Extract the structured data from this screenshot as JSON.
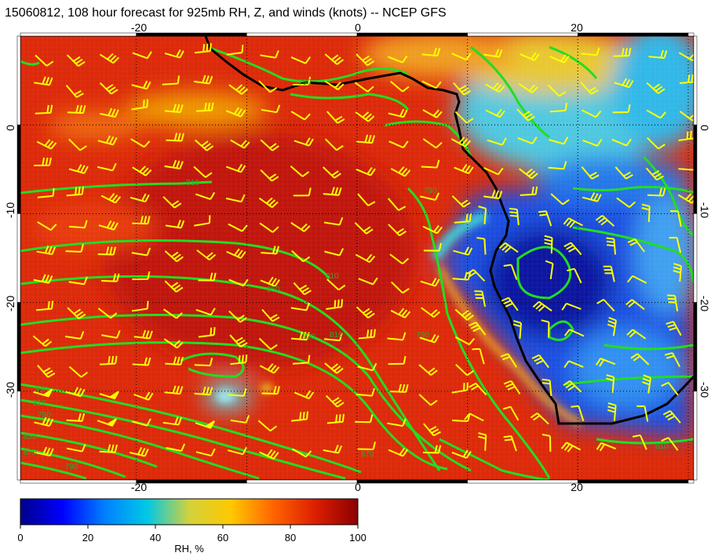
{
  "title": "15060812, 108 hour forecast for 925mb RH, Z, and winds (knots) -- NCEP GFS",
  "map": {
    "lon_range": [
      -30.5,
      30.5
    ],
    "lat_range": [
      -40,
      10
    ],
    "x_tick_labels": [
      "-20",
      "0",
      "20"
    ],
    "x_tick_values": [
      -20,
      0,
      20
    ],
    "y_tick_labels": [
      "0",
      "-10",
      "-20",
      "-30"
    ],
    "y_tick_values": [
      0,
      -10,
      -20,
      -30
    ],
    "coastline_color": "#000000",
    "contour_color": "#22dd22",
    "wind_barb_color": "#ffff00",
    "gridline_style": "dotted"
  },
  "contour_labels": [
    "810",
    "790",
    "850",
    "810",
    "830",
    "810",
    "790",
    "830",
    "810",
    "790",
    "870",
    "810",
    "850",
    "870",
    "790",
    "790"
  ],
  "colorbar": {
    "label": "RH, %",
    "min": 0,
    "max": 100,
    "tick_labels": [
      "0",
      "20",
      "40",
      "60",
      "80",
      "100"
    ],
    "tick_values": [
      0,
      20,
      40,
      60,
      80,
      100
    ],
    "colors": [
      "#00008b",
      "#0000ff",
      "#0080ff",
      "#00c8e6",
      "#d2d23c",
      "#ffc800",
      "#ff6400",
      "#dc1e00",
      "#8b0000"
    ]
  }
}
